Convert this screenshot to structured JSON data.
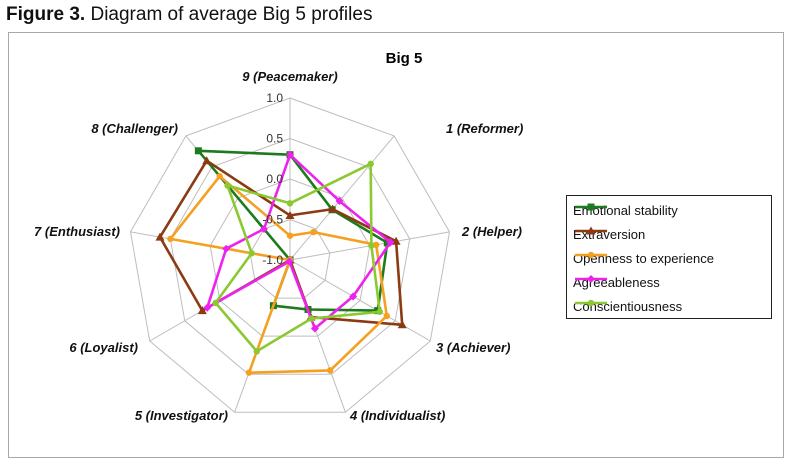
{
  "figure": {
    "label": "Figure 3.",
    "caption": "Diagram of average Big 5 profiles"
  },
  "chart_data": {
    "type": "radar",
    "title": "Big 5",
    "categories": [
      "9 (Peacemaker)",
      "1 (Reformer)",
      "2 (Helper)",
      "3 (Achiever)",
      "4 (Individualist)",
      "5 (Investigator)",
      "6 (Loyalist)",
      "7 (Enthusiast)",
      "8 (Challenger)"
    ],
    "rlim": [
      -1.0,
      1.0
    ],
    "ticks": [
      1.0,
      0.5,
      0.0,
      -0.5,
      -1.0
    ],
    "tick_labels": [
      "1.0",
      "0.5",
      "0.0",
      "-0.5",
      "-1.0"
    ],
    "grid": true,
    "legend_position": "right",
    "series": [
      {
        "name": "Emotional stability",
        "color": "#1e7a1e",
        "marker": "square",
        "values": [
          0.3,
          -0.19,
          0.22,
          0.25,
          -0.35,
          -0.4,
          -1.0,
          -1.0,
          0.76
        ]
      },
      {
        "name": "Extraversion",
        "color": "#8b3a12",
        "marker": "triangle",
        "values": [
          -0.45,
          -0.18,
          0.33,
          0.6,
          -0.25,
          -1.0,
          0.25,
          0.63,
          0.6
        ]
      },
      {
        "name": "Openness to experience",
        "color": "#f5a020",
        "marker": "circle",
        "values": [
          -0.7,
          -0.55,
          0.08,
          0.38,
          0.45,
          0.48,
          -1.0,
          0.5,
          0.35
        ]
      },
      {
        "name": "Agreeableness",
        "color": "#ee22ee",
        "marker": "diamond",
        "values": [
          0.3,
          -0.05,
          0.26,
          -0.1,
          -0.1,
          -0.98,
          0.18,
          -0.2,
          -0.5
        ]
      },
      {
        "name": "Conscientiousness",
        "color": "#8cc832",
        "marker": "circle",
        "values": [
          -0.3,
          0.55,
          0.02,
          0.28,
          -0.23,
          0.2,
          0.06,
          -0.52,
          0.2
        ]
      }
    ]
  }
}
